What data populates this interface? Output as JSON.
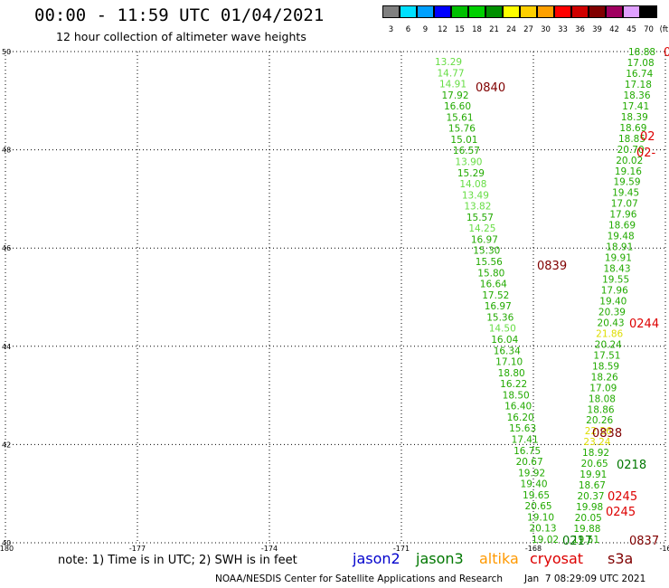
{
  "header": {
    "title": "00:00 - 11:59 UTC 01/04/2021",
    "subtitle": "12 hour collection of altimeter wave heights"
  },
  "colorbar": {
    "unit": "(ft)",
    "bins": [
      {
        "label": "3",
        "color": "#808080"
      },
      {
        "label": "6",
        "color": "#00e0ff"
      },
      {
        "label": "9",
        "color": "#00a0ff"
      },
      {
        "label": "12",
        "color": "#0000ff"
      },
      {
        "label": "15",
        "color": "#00c000"
      },
      {
        "label": "18",
        "color": "#00d000"
      },
      {
        "label": "21",
        "color": "#009000"
      },
      {
        "label": "24",
        "color": "#ffff00"
      },
      {
        "label": "27",
        "color": "#ffd000"
      },
      {
        "label": "30",
        "color": "#ffa000"
      },
      {
        "label": "33",
        "color": "#ff0000"
      },
      {
        "label": "36",
        "color": "#d00000"
      },
      {
        "label": "39",
        "color": "#800000"
      },
      {
        "label": "42",
        "color": "#a00060"
      },
      {
        "label": "45",
        "color": "#e0a0ff"
      },
      {
        "label": "70",
        "color": "#000000"
      }
    ]
  },
  "map": {
    "lon_ticks": [
      {
        "value": -180,
        "label": "-180"
      },
      {
        "value": -177,
        "label": "-177"
      },
      {
        "value": -174,
        "label": "-174"
      },
      {
        "value": -171,
        "label": "-171"
      },
      {
        "value": -168,
        "label": "-168"
      },
      {
        "value": -165,
        "label": "-16"
      }
    ],
    "lat_ticks": [
      {
        "value": 40,
        "label": "40"
      },
      {
        "value": 42,
        "label": "42"
      },
      {
        "value": 44,
        "label": "44"
      },
      {
        "value": 46,
        "label": "46"
      },
      {
        "value": 48,
        "label": "48"
      },
      {
        "value": 50,
        "label": "50"
      }
    ]
  },
  "tracks": {
    "left_track": [
      {
        "text": "13.29",
        "color": "#66dd44"
      },
      {
        "text": "14.77",
        "color": "#66dd44"
      },
      {
        "text": "14.91",
        "color": "#66dd44"
      },
      {
        "text": "17.92",
        "color": "#22aa00"
      },
      {
        "text": "16.60",
        "color": "#22aa00"
      },
      {
        "text": "15.61",
        "color": "#22aa00"
      },
      {
        "text": "15.76",
        "color": "#22aa00"
      },
      {
        "text": "15.01",
        "color": "#22aa00"
      },
      {
        "text": "16.57",
        "color": "#22aa00"
      },
      {
        "text": "13.90",
        "color": "#66dd44"
      },
      {
        "text": "15.29",
        "color": "#22aa00"
      },
      {
        "text": "14.08",
        "color": "#66dd44"
      },
      {
        "text": "13.49",
        "color": "#66dd44"
      },
      {
        "text": "13.82",
        "color": "#66dd44"
      },
      {
        "text": "15.57",
        "color": "#22aa00"
      },
      {
        "text": "14.25",
        "color": "#66dd44"
      },
      {
        "text": "16.97",
        "color": "#22aa00"
      },
      {
        "text": "15.30",
        "color": "#22aa00"
      },
      {
        "text": "15.56",
        "color": "#22aa00"
      },
      {
        "text": "15.80",
        "color": "#22aa00"
      },
      {
        "text": "16.64",
        "color": "#22aa00"
      },
      {
        "text": "17.52",
        "color": "#22aa00"
      },
      {
        "text": "16.97",
        "color": "#22aa00"
      },
      {
        "text": "15.36",
        "color": "#22aa00"
      },
      {
        "text": "14.50",
        "color": "#66dd44"
      },
      {
        "text": "16.04",
        "color": "#22aa00"
      },
      {
        "text": "16.34",
        "color": "#22aa00"
      },
      {
        "text": "17.10",
        "color": "#22aa00"
      },
      {
        "text": "18.80",
        "color": "#22aa00"
      },
      {
        "text": "16.22",
        "color": "#22aa00"
      },
      {
        "text": "18.50",
        "color": "#22aa00"
      },
      {
        "text": "16.40",
        "color": "#22aa00"
      },
      {
        "text": "16.20",
        "color": "#22aa00"
      },
      {
        "text": "15.63",
        "color": "#22aa00"
      },
      {
        "text": "17.41",
        "color": "#22aa00"
      },
      {
        "text": "16.75",
        "color": "#22aa00"
      },
      {
        "text": "20.67",
        "color": "#22aa00"
      },
      {
        "text": "19.92",
        "color": "#22aa00"
      },
      {
        "text": "19.40",
        "color": "#22aa00"
      },
      {
        "text": "19.65",
        "color": "#22aa00"
      },
      {
        "text": "20.65",
        "color": "#22aa00"
      },
      {
        "text": "19.10",
        "color": "#22aa00"
      },
      {
        "text": "20.13",
        "color": "#22aa00"
      },
      {
        "text": "19.02",
        "color": "#22aa00"
      }
    ],
    "right_track": [
      {
        "text": "18.88",
        "color": "#22aa00"
      },
      {
        "text": "17.08",
        "color": "#22aa00"
      },
      {
        "text": "16.74",
        "color": "#22aa00"
      },
      {
        "text": "17.18",
        "color": "#22aa00"
      },
      {
        "text": "18.36",
        "color": "#22aa00"
      },
      {
        "text": "17.41",
        "color": "#22aa00"
      },
      {
        "text": "18.39",
        "color": "#22aa00"
      },
      {
        "text": "18.69",
        "color": "#22aa00"
      },
      {
        "text": "18.85",
        "color": "#22aa00"
      },
      {
        "text": "20.70",
        "color": "#22aa00"
      },
      {
        "text": "20.02",
        "color": "#22aa00"
      },
      {
        "text": "19.16",
        "color": "#22aa00"
      },
      {
        "text": "19.59",
        "color": "#22aa00"
      },
      {
        "text": "19.45",
        "color": "#22aa00"
      },
      {
        "text": "17.07",
        "color": "#22aa00"
      },
      {
        "text": "17.96",
        "color": "#22aa00"
      },
      {
        "text": "18.69",
        "color": "#22aa00"
      },
      {
        "text": "19.48",
        "color": "#22aa00"
      },
      {
        "text": "18.91",
        "color": "#22aa00"
      },
      {
        "text": "19.91",
        "color": "#22aa00"
      },
      {
        "text": "18.43",
        "color": "#22aa00"
      },
      {
        "text": "19.55",
        "color": "#22aa00"
      },
      {
        "text": "17.96",
        "color": "#22aa00"
      },
      {
        "text": "19.40",
        "color": "#22aa00"
      },
      {
        "text": "20.39",
        "color": "#22aa00"
      },
      {
        "text": "20.43",
        "color": "#22aa00"
      },
      {
        "text": "21.86",
        "color": "#dddd00"
      },
      {
        "text": "20.24",
        "color": "#22aa00"
      },
      {
        "text": "17.51",
        "color": "#22aa00"
      },
      {
        "text": "18.59",
        "color": "#22aa00"
      },
      {
        "text": "18.26",
        "color": "#22aa00"
      },
      {
        "text": "17.09",
        "color": "#22aa00"
      },
      {
        "text": "18.08",
        "color": "#22aa00"
      },
      {
        "text": "18.86",
        "color": "#22aa00"
      },
      {
        "text": "20.26",
        "color": "#22aa00"
      },
      {
        "text": "22.26",
        "color": "#dddd00"
      },
      {
        "text": "23.24",
        "color": "#dddd00"
      },
      {
        "text": "18.92",
        "color": "#22aa00"
      },
      {
        "text": "20.65",
        "color": "#22aa00"
      },
      {
        "text": "19.91",
        "color": "#22aa00"
      },
      {
        "text": "18.67",
        "color": "#22aa00"
      },
      {
        "text": "20.37",
        "color": "#22aa00"
      },
      {
        "text": "19.98",
        "color": "#22aa00"
      },
      {
        "text": "20.05",
        "color": "#22aa00"
      },
      {
        "text": "19.88",
        "color": "#22aa00"
      },
      {
        "text": "19.51",
        "color": "#22aa00"
      }
    ],
    "pass_labels": [
      {
        "text": "0840",
        "color": "#800000"
      },
      {
        "text": "0839",
        "color": "#800000"
      },
      {
        "text": "0838",
        "color": "#800000"
      },
      {
        "text": "0837",
        "color": "#800000"
      },
      {
        "text": "0218",
        "color": "#007700"
      },
      {
        "text": "0217",
        "color": "#007700"
      },
      {
        "text": "0244",
        "color": "#dd0000"
      },
      {
        "text": "0245",
        "color": "#dd0000"
      },
      {
        "text": "0245",
        "color": "#dd0000"
      },
      {
        "text": "02",
        "color": "#dd0000"
      },
      {
        "text": "02-",
        "color": "#dd0000"
      },
      {
        "text": "0",
        "color": "#dd0000"
      }
    ]
  },
  "footer": {
    "note": "note: 1) Time is in UTC; 2) SWH is in feet",
    "satellites": [
      {
        "name": "jason2",
        "color": "#0000cc"
      },
      {
        "name": "jason3",
        "color": "#007700"
      },
      {
        "name": "altika",
        "color": "#ff9900"
      },
      {
        "name": "cryosat",
        "color": "#dd0000"
      },
      {
        "name": "s3a",
        "color": "#800000"
      }
    ],
    "credit": "NOAA/NESDIS Center for Satellite Applications and Research",
    "timestamp": "Jan  7 08:29:09 UTC 2021"
  }
}
